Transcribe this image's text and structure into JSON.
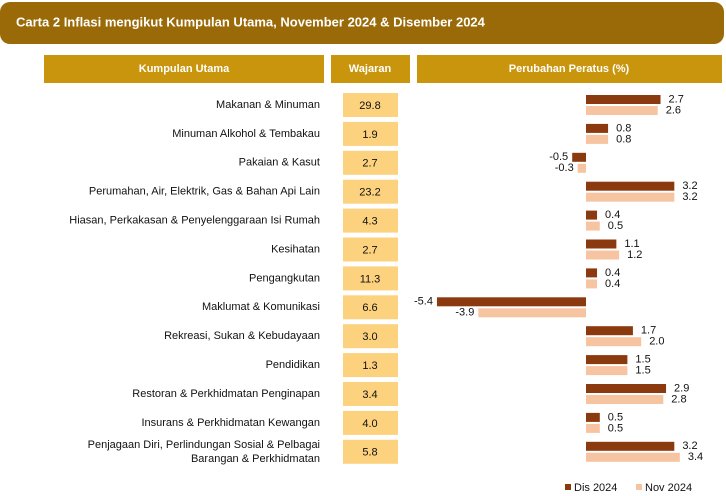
{
  "chart_data": {
    "type": "bar",
    "title": "Carta 2  Inflasi mengikut Kumpulan Utama, November 2024 & Disember 2024",
    "headers": [
      "Kumpulan Utama",
      "Wajaran",
      "Perubahan Peratus (%)"
    ],
    "categories": [
      "Makanan & Minuman",
      "Minuman Alkohol & Tembakau",
      "Pakaian & Kasut",
      "Perumahan, Air, Elektrik, Gas & Bahan Api Lain",
      "Hiasan, Perkakasan & Penyelenggaraan Isi Rumah",
      "Kesihatan",
      "Pengangkutan",
      "Maklumat & Komunikasi",
      "Rekreasi, Sukan & Kebudayaan",
      "Pendidikan",
      "Restoran & Perkhidmatan Penginapan",
      "Insurans & Perkhidmatan Kewangan",
      "Penjagaan Diri, Perlindungan Sosial & Pelbagai\nBarangan & Perkhidmatan"
    ],
    "weights": [
      "29.8",
      "1.9",
      "2.7",
      "23.2",
      "4.3",
      "2.7",
      "11.3",
      "6.6",
      "3.0",
      "1.3",
      "3.4",
      "4.0",
      "5.8"
    ],
    "series": [
      {
        "name": "Dis 2024",
        "color": "#8b3a0f",
        "values": [
          2.7,
          0.8,
          -0.5,
          3.2,
          0.4,
          1.1,
          0.4,
          -5.4,
          1.7,
          1.5,
          2.9,
          0.5,
          3.2
        ],
        "value_labels": [
          "2.7",
          "0.8",
          "-0.5",
          "3.2",
          "0.4",
          "1.1",
          "0.4",
          "-5.4",
          "1.7",
          "1.5",
          "2.9",
          "0.5",
          "3.2"
        ]
      },
      {
        "name": "Nov 2024",
        "color": "#f7c4a2",
        "values": [
          2.6,
          0.8,
          -0.3,
          3.2,
          0.5,
          1.2,
          0.4,
          -3.9,
          2.0,
          1.5,
          2.8,
          0.5,
          3.4
        ],
        "value_labels": [
          "2.6",
          "0.8",
          "-0.3",
          "3.2",
          "0.5",
          "1.2",
          "0.4",
          "-3.9",
          "2.0",
          "1.5",
          "2.8",
          "0.5",
          "3.4"
        ]
      }
    ]
  }
}
